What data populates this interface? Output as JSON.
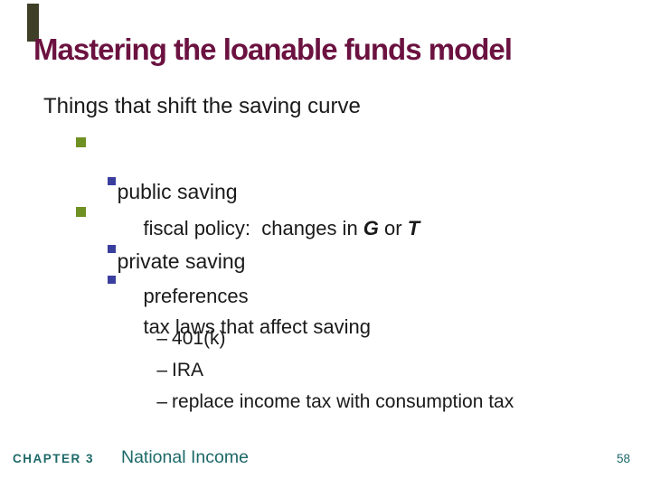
{
  "colors": {
    "background": "#ffffff",
    "title-color": "#6b1240",
    "accent-bar": "#3f3f28",
    "bullet-green": "#6f9023",
    "bullet-navy": "#3a3f9e",
    "footer-teal": "#1d6868",
    "body-text": "#1a1a1a"
  },
  "slide": {
    "title": "Mastering the loanable funds model",
    "heading": "Things that shift the saving curve",
    "list": {
      "public": "public saving",
      "fiscal": {
        "pre": "fiscal policy:  changes in ",
        "g": "G",
        "or": " or ",
        "t": "T"
      },
      "private": "private saving",
      "preferences": "preferences",
      "tax_laws": "tax laws that affect saving",
      "dash": "–",
      "sub_401k": "401(k)",
      "sub_ira": "IRA",
      "sub_replace": "replace income tax with consumption tax"
    },
    "footer": {
      "chapter_label": "CHAPTER 3",
      "chapter_title": "National Income",
      "page_number": "58"
    }
  }
}
